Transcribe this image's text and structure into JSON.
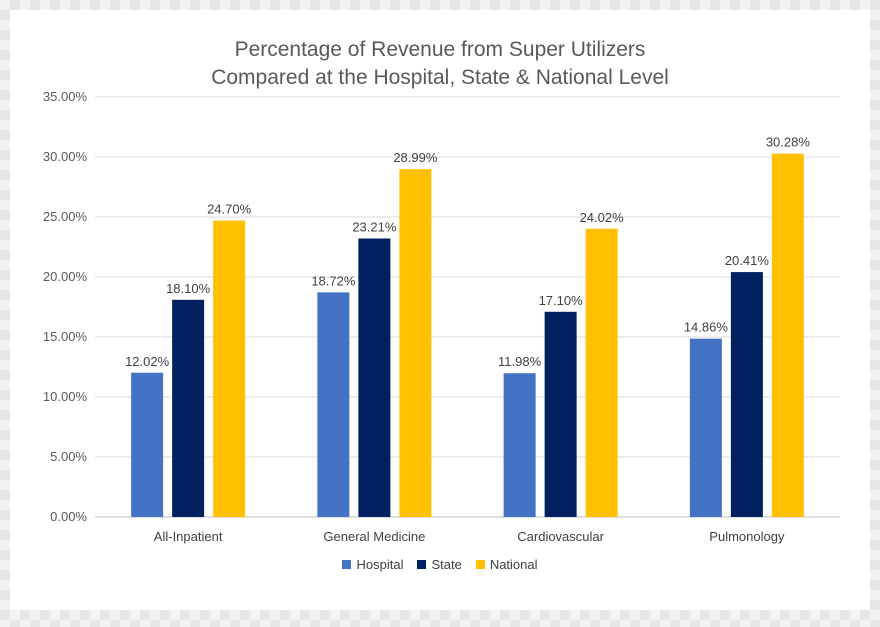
{
  "chart_data": {
    "type": "bar",
    "title_lines": [
      "Percentage of Revenue from Super Utilizers",
      "Compared at the Hospital, State & National Level"
    ],
    "categories": [
      "All-Inpatient",
      "General Medicine",
      "Cardiovascular",
      "Pulmonology"
    ],
    "series": [
      {
        "name": "Hospital",
        "color": "#4472C4",
        "values": [
          12.02,
          18.72,
          11.98,
          14.86
        ],
        "labels": [
          "12.02%",
          "18.72%",
          "11.98%",
          "14.86%"
        ]
      },
      {
        "name": "State",
        "color": "#002060",
        "values": [
          18.1,
          23.21,
          17.1,
          20.41
        ],
        "labels": [
          "18.10%",
          "23.21%",
          "17.10%",
          "20.41%"
        ]
      },
      {
        "name": "National",
        "color": "#FFC000",
        "values": [
          24.7,
          28.99,
          24.02,
          30.28
        ],
        "labels": [
          "24.70%",
          "28.99%",
          "24.02%",
          "30.28%"
        ]
      }
    ],
    "y_ticks": [
      "0.00%",
      "5.00%",
      "10.00%",
      "15.00%",
      "20.00%",
      "25.00%",
      "30.00%",
      "35.00%"
    ],
    "ylim": [
      0,
      35
    ],
    "xlabel": "",
    "ylabel": "",
    "grid": true,
    "legend_position": "bottom"
  }
}
